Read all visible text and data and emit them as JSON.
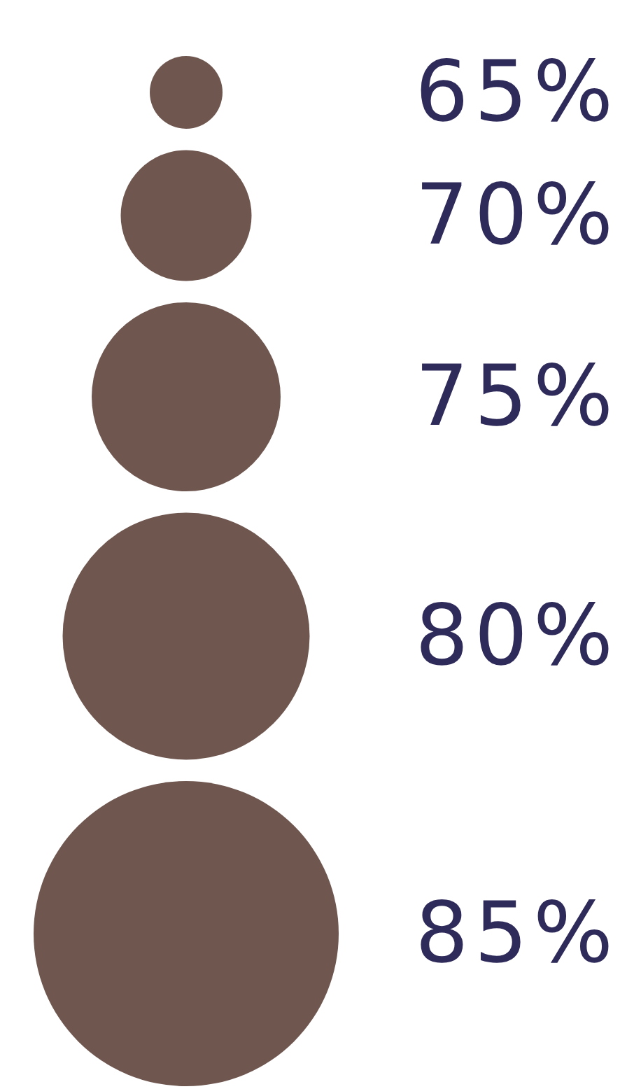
{
  "chart_data": {
    "type": "other",
    "values": [
      65,
      70,
      75,
      80,
      85
    ],
    "color": "#6f5750",
    "value_labels": [
      "65%",
      "70%",
      "75%",
      "80%",
      "85%"
    ]
  }
}
